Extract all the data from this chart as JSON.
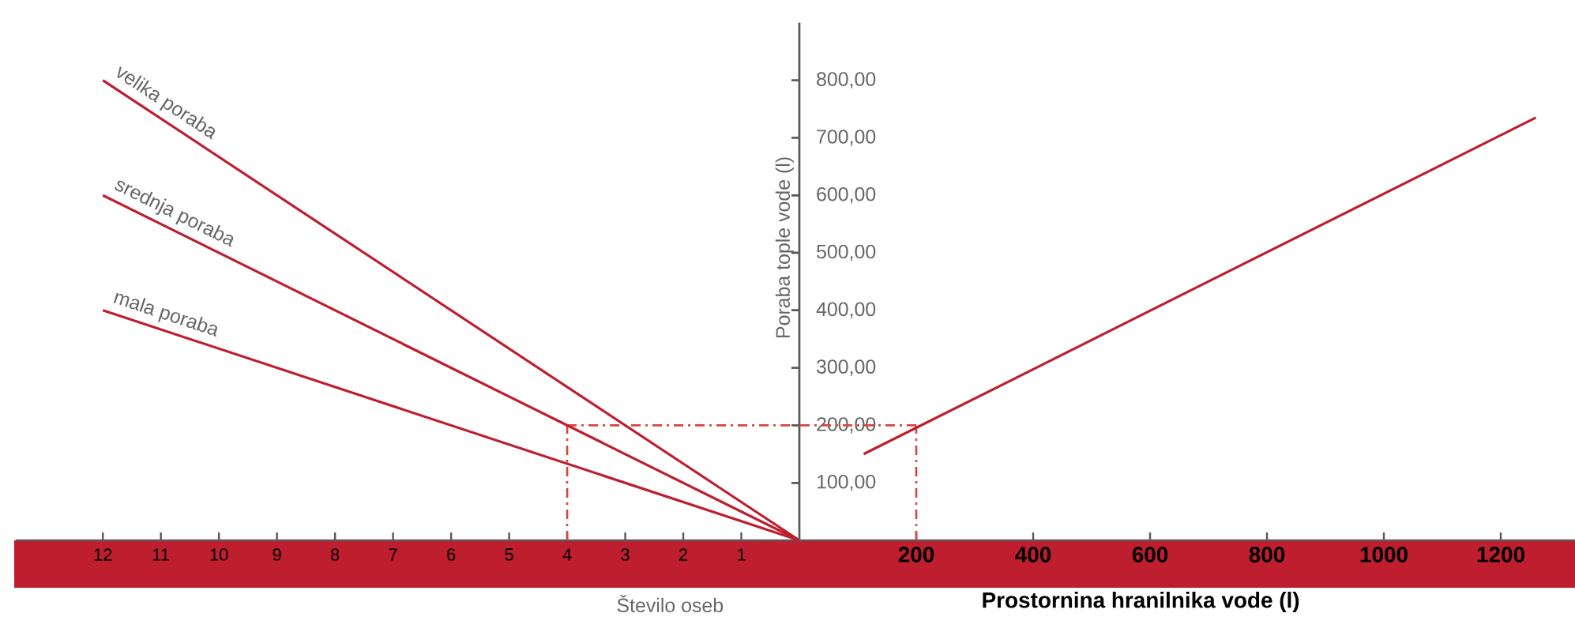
{
  "chart_data": [
    {
      "type": "line",
      "xlabel": "Število oseb",
      "xlim": [
        13.5,
        0
      ],
      "ylim": [
        0,
        900
      ],
      "tick_labels": "x",
      "line_style": "solid",
      "xticks": [
        1,
        2,
        3,
        4,
        5,
        6,
        7,
        8,
        9,
        10,
        11,
        12
      ],
      "yticks": [
        100,
        200,
        300,
        400,
        500,
        600,
        700,
        800
      ],
      "series": [
        {
          "name": "velika poraba",
          "color": "#be1e2d",
          "x": [
            12,
            0
          ],
          "values": [
            800,
            0
          ]
        },
        {
          "name": "srednja poraba",
          "color": "#be1e2d",
          "x": [
            12,
            0
          ],
          "values": [
            600,
            0
          ]
        },
        {
          "name": "mala poraba",
          "color": "#be1e2d",
          "x": [
            12,
            0
          ],
          "values": [
            400,
            0
          ]
        }
      ],
      "ref_lines": [
        {
          "axis": "x",
          "value": 4,
          "color": "#d9443f",
          "line_style": "dashed"
        },
        {
          "axis": "y",
          "value": 200,
          "color": "#d9443f",
          "line_style": "dashed"
        }
      ]
    },
    {
      "type": "line",
      "xlabel": "Prostornina hranilnika vode (l)",
      "ylabel": "Poraba tople vode (l)",
      "xlim": [
        0,
        1327
      ],
      "ylim": [
        0,
        900
      ],
      "line_style": "solid",
      "xticks": [
        200,
        400,
        600,
        800,
        1000,
        1200
      ],
      "yticks": [
        {
          "value": 100,
          "label": "100,00"
        },
        {
          "value": 200,
          "label": "200,00"
        },
        {
          "value": 300,
          "label": "300,00"
        },
        {
          "value": 400,
          "label": "400,00"
        },
        {
          "value": 500,
          "label": "500,00"
        },
        {
          "value": 600,
          "label": "600,00"
        },
        {
          "value": 700,
          "label": "700,00"
        },
        {
          "value": 800,
          "label": "800,00"
        }
      ],
      "series": [
        {
          "color": "#be1e2d",
          "x": [
            110,
            1260
          ],
          "values": [
            150,
            735
          ]
        }
      ],
      "ref_lines": [
        {
          "axis": "x",
          "value": 200,
          "color": "#d9443f",
          "line_style": "dashed"
        },
        {
          "axis": "y",
          "value": 200,
          "color": "#d9443f",
          "line_style": "dashed"
        }
      ]
    }
  ]
}
